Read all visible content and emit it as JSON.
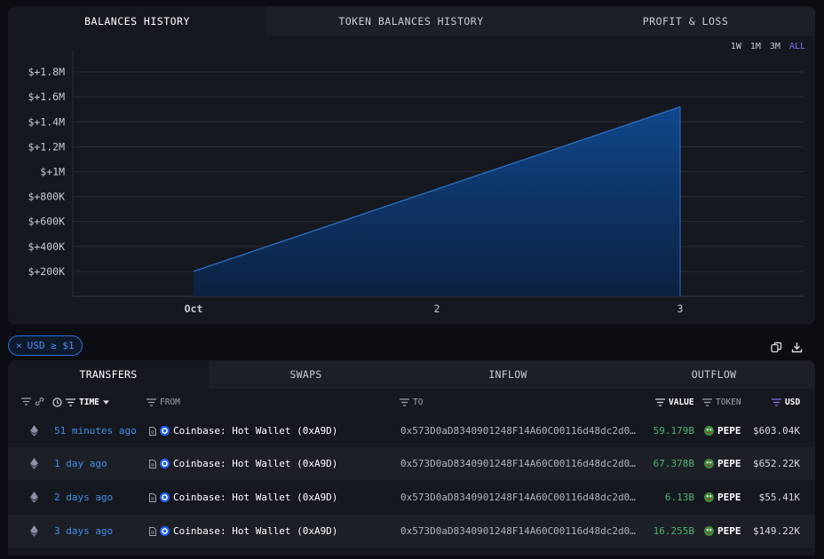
{
  "chart_tabs": [
    "BALANCES HISTORY",
    "TOKEN BALANCES HISTORY",
    "PROFIT & LOSS"
  ],
  "ranges": [
    "1W",
    "1M",
    "3M",
    "ALL"
  ],
  "active_range": "ALL",
  "chart_data": {
    "type": "area",
    "x": [
      "Oct",
      "2",
      "3"
    ],
    "values": [
      200000,
      860000,
      1520000
    ],
    "y_ticks": [
      "$+200K",
      "$+400K",
      "$+600K",
      "$+800K",
      "$+1M",
      "$+1.2M",
      "$+1.4M",
      "$+1.6M",
      "$+1.8M"
    ],
    "y_tick_values": [
      200000,
      400000,
      600000,
      800000,
      1000000,
      1200000,
      1400000,
      1600000,
      1800000
    ],
    "ylim": [
      0,
      1900000
    ],
    "grid": true,
    "colors": {
      "line": "#2a6fc4",
      "fill_top": "#0f4a92",
      "fill_bottom": "#0b2244",
      "grid": "#2a2d36"
    }
  },
  "filter_chip": {
    "label": "USD ≥ $1",
    "close": "×"
  },
  "table_tabs": [
    "TRANSFERS",
    "SWAPS",
    "INFLOW",
    "OUTFLOW"
  ],
  "columns": {
    "time": "TIME",
    "from": "FROM",
    "to": "TO",
    "value": "VALUE",
    "token": "TOKEN",
    "usd": "USD"
  },
  "rows": [
    {
      "time": "51 minutes ago",
      "from": "Coinbase: Hot Wallet (0xA9D)",
      "to": "0x573D0aD8340901248F14A60C00116d48dc2d0…",
      "value": "59.179B",
      "token": "PEPE",
      "usd": "$603.04K"
    },
    {
      "time": "1 day ago",
      "from": "Coinbase: Hot Wallet (0xA9D)",
      "to": "0x573D0aD8340901248F14A60C00116d48dc2d0…",
      "value": "67.378B",
      "token": "PEPE",
      "usd": "$652.22K"
    },
    {
      "time": "2 days ago",
      "from": "Coinbase: Hot Wallet (0xA9D)",
      "to": "0x573D0aD8340901248F14A60C00116d48dc2d0…",
      "value": "6.13B",
      "token": "PEPE",
      "usd": "$55.41K"
    },
    {
      "time": "3 days ago",
      "from": "Coinbase: Hot Wallet (0xA9D)",
      "to": "0x573D0aD8340901248F14A60C00116d48dc2d0…",
      "value": "16.255B",
      "token": "PEPE",
      "usd": "$149.22K"
    }
  ]
}
